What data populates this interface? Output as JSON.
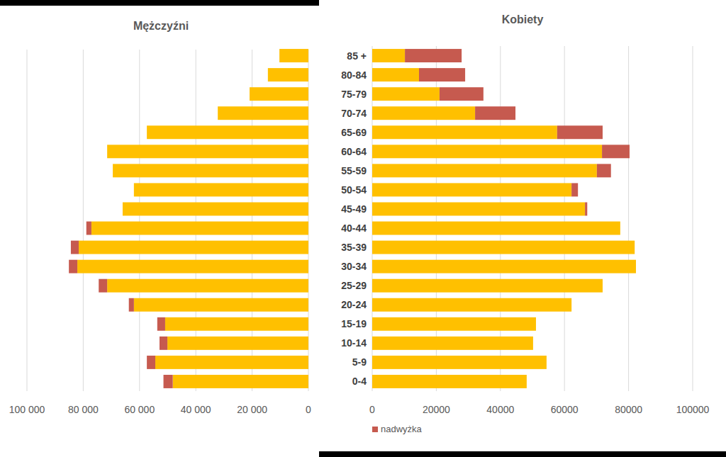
{
  "chart_data": [
    {
      "type": "bar",
      "title": "Mężczyźni",
      "orientation": "horizontal",
      "stacked": true,
      "grid": true,
      "tick_labels": "x",
      "categories": [
        "0-4",
        "5-9",
        "10-14",
        "15-19",
        "20-24",
        "25-29",
        "30-34",
        "35-39",
        "40-44",
        "45-49",
        "50-54",
        "55-59",
        "60-64",
        "65-69",
        "70-74",
        "75-79",
        "80-84",
        "85 +"
      ],
      "xlim": [
        100000,
        0
      ],
      "xticks": [
        {
          "value": 100000,
          "label": "100 000"
        },
        {
          "value": 80000,
          "label": "80 000"
        },
        {
          "value": 60000,
          "label": "60 000"
        },
        {
          "value": 40000,
          "label": "40 000"
        },
        {
          "value": 20000,
          "label": "20 000"
        },
        0
      ],
      "series": [
        {
          "color": "#FFC000",
          "values": [
            48200,
            54400,
            50100,
            50900,
            62000,
            71500,
            82100,
            81600,
            77100,
            66000,
            62000,
            69500,
            71500,
            57400,
            32200,
            20900,
            14400,
            10300
          ]
        },
        {
          "color": "#C65A4F",
          "values": [
            3300,
            3000,
            2800,
            2800,
            1800,
            3000,
            3000,
            2800,
            1800,
            0,
            0,
            0,
            0,
            0,
            0,
            0,
            0,
            0
          ]
        }
      ]
    },
    {
      "type": "bar",
      "title": "Kobiety",
      "orientation": "horizontal",
      "stacked": true,
      "grid": true,
      "legend": "bottom-left",
      "categories": [
        "0-4",
        "5-9",
        "10-14",
        "15-19",
        "20-24",
        "25-29",
        "30-34",
        "35-39",
        "40-44",
        "45-49",
        "50-54",
        "55-59",
        "60-64",
        "65-69",
        "70-74",
        "75-79",
        "80-84",
        "85 +"
      ],
      "xlim": [
        0,
        100000
      ],
      "xticks": [
        0,
        20000,
        40000,
        60000,
        80000,
        100000
      ],
      "series": [
        {
          "color": "#FFC000",
          "values": [
            48200,
            54400,
            50200,
            51100,
            62200,
            71900,
            82300,
            81900,
            77400,
            66400,
            62200,
            70100,
            71700,
            57700,
            32100,
            21000,
            14600,
            10200
          ]
        },
        {
          "name": "nadwyżka",
          "color": "#C65A4F",
          "values": [
            0,
            0,
            0,
            0,
            0,
            0,
            0,
            0,
            0,
            700,
            2000,
            4400,
            8600,
            14200,
            12600,
            13700,
            14400,
            17700
          ]
        }
      ]
    }
  ]
}
